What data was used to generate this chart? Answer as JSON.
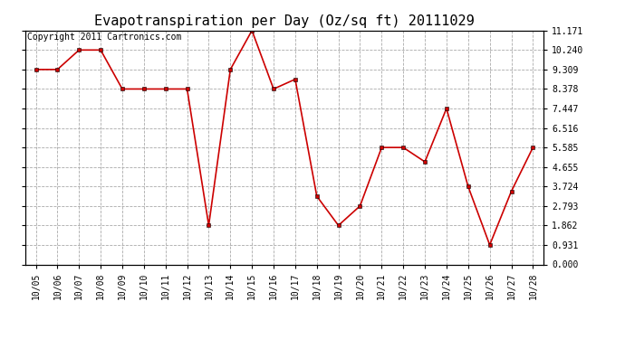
{
  "title": "Evapotranspiration per Day (Oz/sq ft) 20111029",
  "copyright_text": "Copyright 2011 Cartronics.com",
  "x_labels": [
    "10/05",
    "10/06",
    "10/07",
    "10/08",
    "10/09",
    "10/10",
    "10/11",
    "10/12",
    "10/13",
    "10/14",
    "10/15",
    "10/16",
    "10/17",
    "10/18",
    "10/19",
    "10/20",
    "10/21",
    "10/22",
    "10/23",
    "10/24",
    "10/25",
    "10/26",
    "10/27",
    "10/28"
  ],
  "y_values": [
    9.309,
    9.309,
    10.24,
    10.24,
    8.378,
    8.378,
    8.378,
    8.378,
    1.862,
    9.309,
    11.171,
    8.378,
    8.843,
    3.259,
    1.862,
    2.793,
    5.585,
    5.585,
    4.9,
    7.447,
    3.724,
    0.931,
    3.49,
    5.585
  ],
  "y_ticks": [
    0.0,
    0.931,
    1.862,
    2.793,
    3.724,
    4.655,
    5.585,
    6.516,
    7.447,
    8.378,
    9.309,
    10.24,
    11.171
  ],
  "y_min": 0.0,
  "y_max": 11.171,
  "line_color": "#cc0000",
  "marker": "s",
  "marker_size": 3,
  "background_color": "#ffffff",
  "grid_color": "#aaaaaa",
  "title_fontsize": 11,
  "tick_fontsize": 7,
  "copyright_fontsize": 7
}
